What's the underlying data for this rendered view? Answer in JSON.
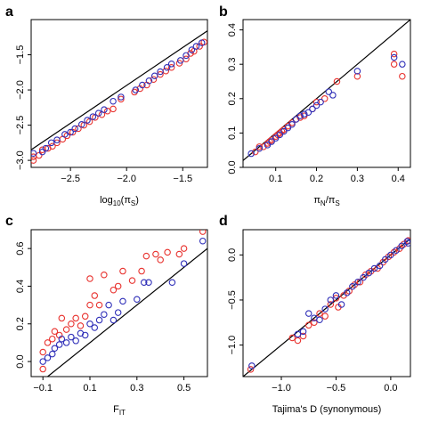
{
  "colors": {
    "red": "#e8322e",
    "blue": "#2f2fb8"
  },
  "chart_data": [
    {
      "panel": "a",
      "type": "scatter",
      "xlabel_main": "log",
      "xlabel_sub": "10",
      "xlabel_rest": "(π",
      "xlabel_rest_sub": "S",
      "xlabel_close": ")",
      "xlim": [
        -2.85,
        -1.28
      ],
      "ylim": [
        -3.1,
        -1.0
      ],
      "xticks": [
        -2.5,
        -2.0,
        -1.5
      ],
      "xtick_labels": [
        "−2.5",
        "−2.0",
        "−1.5"
      ],
      "yticks": [
        -3.0,
        -2.5,
        -2.0,
        -1.5
      ],
      "ytick_labels": [
        "−3.0",
        "−2.5",
        "−2.0",
        "−1.5"
      ],
      "reference_line": {
        "from": [
          -2.85,
          -2.85
        ],
        "to": [
          -1.28,
          -1.16
        ]
      },
      "blue": [
        [
          -2.83,
          -2.9
        ],
        [
          -2.75,
          -2.88
        ],
        [
          -2.72,
          -2.83
        ],
        [
          -2.67,
          -2.75
        ],
        [
          -2.62,
          -2.71
        ],
        [
          -2.55,
          -2.63
        ],
        [
          -2.5,
          -2.6
        ],
        [
          -2.46,
          -2.55
        ],
        [
          -2.4,
          -2.49
        ],
        [
          -2.35,
          -2.43
        ],
        [
          -2.3,
          -2.38
        ],
        [
          -2.25,
          -2.33
        ],
        [
          -2.2,
          -2.28
        ],
        [
          -2.12,
          -2.16
        ],
        [
          -2.05,
          -2.1
        ],
        [
          -1.92,
          -2.0
        ],
        [
          -1.86,
          -1.93
        ],
        [
          -1.8,
          -1.87
        ],
        [
          -1.75,
          -1.8
        ],
        [
          -1.7,
          -1.74
        ],
        [
          -1.64,
          -1.68
        ],
        [
          -1.6,
          -1.63
        ],
        [
          -1.52,
          -1.58
        ],
        [
          -1.47,
          -1.51
        ],
        [
          -1.42,
          -1.43
        ],
        [
          -1.38,
          -1.38
        ],
        [
          -1.33,
          -1.33
        ]
      ],
      "red": [
        [
          -2.83,
          -3.0
        ],
        [
          -2.83,
          -2.95
        ],
        [
          -2.78,
          -2.93
        ],
        [
          -2.75,
          -2.85
        ],
        [
          -2.7,
          -2.83
        ],
        [
          -2.66,
          -2.8
        ],
        [
          -2.62,
          -2.75
        ],
        [
          -2.57,
          -2.7
        ],
        [
          -2.53,
          -2.65
        ],
        [
          -2.48,
          -2.6
        ],
        [
          -2.43,
          -2.55
        ],
        [
          -2.38,
          -2.5
        ],
        [
          -2.33,
          -2.45
        ],
        [
          -2.28,
          -2.39
        ],
        [
          -2.22,
          -2.35
        ],
        [
          -2.17,
          -2.3
        ],
        [
          -2.12,
          -2.27
        ],
        [
          -2.05,
          -2.13
        ],
        [
          -1.93,
          -2.03
        ],
        [
          -1.88,
          -1.98
        ],
        [
          -1.82,
          -1.93
        ],
        [
          -1.76,
          -1.85
        ],
        [
          -1.7,
          -1.78
        ],
        [
          -1.65,
          -1.73
        ],
        [
          -1.6,
          -1.68
        ],
        [
          -1.53,
          -1.62
        ],
        [
          -1.47,
          -1.56
        ],
        [
          -1.43,
          -1.48
        ],
        [
          -1.4,
          -1.45
        ],
        [
          -1.35,
          -1.38
        ],
        [
          -1.31,
          -1.32
        ]
      ]
    },
    {
      "panel": "b",
      "type": "scatter",
      "xlabel_main": "π",
      "xlabel_sub": "N",
      "xlabel_rest": "/π",
      "xlabel_rest_sub": "S",
      "xlabel_close": "",
      "xlim": [
        0.02,
        0.43
      ],
      "ylim": [
        0.0,
        0.43
      ],
      "xticks": [
        0.1,
        0.2,
        0.3,
        0.4
      ],
      "xtick_labels": [
        "0.1",
        "0.2",
        "0.3",
        "0.4"
      ],
      "yticks": [
        0.0,
        0.1,
        0.2,
        0.3,
        0.4
      ],
      "ytick_labels": [
        "0.0",
        "0.1",
        "0.2",
        "0.3",
        "0.4"
      ],
      "reference_line": {
        "from": [
          0.02,
          0.02
        ],
        "to": [
          0.43,
          0.43
        ]
      },
      "blue": [
        [
          0.04,
          0.04
        ],
        [
          0.06,
          0.055
        ],
        [
          0.08,
          0.065
        ],
        [
          0.09,
          0.075
        ],
        [
          0.1,
          0.085
        ],
        [
          0.11,
          0.095
        ],
        [
          0.12,
          0.105
        ],
        [
          0.13,
          0.115
        ],
        [
          0.14,
          0.125
        ],
        [
          0.15,
          0.14
        ],
        [
          0.16,
          0.15
        ],
        [
          0.17,
          0.155
        ],
        [
          0.18,
          0.16
        ],
        [
          0.19,
          0.17
        ],
        [
          0.2,
          0.18
        ],
        [
          0.21,
          0.19
        ],
        [
          0.23,
          0.22
        ],
        [
          0.24,
          0.21
        ],
        [
          0.3,
          0.28
        ],
        [
          0.39,
          0.32
        ],
        [
          0.41,
          0.3
        ]
      ],
      "red": [
        [
          0.05,
          0.045
        ],
        [
          0.06,
          0.06
        ],
        [
          0.07,
          0.06
        ],
        [
          0.08,
          0.07
        ],
        [
          0.085,
          0.075
        ],
        [
          0.09,
          0.08
        ],
        [
          0.1,
          0.09
        ],
        [
          0.105,
          0.095
        ],
        [
          0.11,
          0.1
        ],
        [
          0.115,
          0.105
        ],
        [
          0.12,
          0.11
        ],
        [
          0.13,
          0.12
        ],
        [
          0.14,
          0.13
        ],
        [
          0.15,
          0.14
        ],
        [
          0.16,
          0.145
        ],
        [
          0.17,
          0.15
        ],
        [
          0.19,
          0.17
        ],
        [
          0.2,
          0.19
        ],
        [
          0.22,
          0.2
        ],
        [
          0.25,
          0.25
        ],
        [
          0.3,
          0.265
        ],
        [
          0.39,
          0.33
        ],
        [
          0.39,
          0.3
        ],
        [
          0.41,
          0.265
        ]
      ]
    },
    {
      "panel": "c",
      "type": "scatter",
      "xlabel_main": "F",
      "xlabel_sub": "IT",
      "xlabel_rest": "",
      "xlabel_rest_sub": "",
      "xlabel_close": "",
      "xlim": [
        -0.15,
        0.6
      ],
      "ylim": [
        -0.08,
        0.7
      ],
      "xticks": [
        -0.1,
        0.1,
        0.3,
        0.5
      ],
      "xtick_labels": [
        "−0.1",
        "0.1",
        "0.3",
        "0.5"
      ],
      "yticks": [
        0.0,
        0.2,
        0.4,
        0.6
      ],
      "ytick_labels": [
        "0.0",
        "0.2",
        "0.4",
        "0.6"
      ],
      "reference_line": {
        "from": [
          -0.15,
          -0.15
        ],
        "to": [
          0.6,
          0.6
        ]
      },
      "blue": [
        [
          -0.1,
          0.0
        ],
        [
          -0.08,
          0.02
        ],
        [
          -0.06,
          0.04
        ],
        [
          -0.05,
          0.07
        ],
        [
          -0.03,
          0.09
        ],
        [
          -0.02,
          0.12
        ],
        [
          0.0,
          0.1
        ],
        [
          0.02,
          0.13
        ],
        [
          0.04,
          0.11
        ],
        [
          0.06,
          0.15
        ],
        [
          0.08,
          0.14
        ],
        [
          0.1,
          0.2
        ],
        [
          0.12,
          0.18
        ],
        [
          0.14,
          0.22
        ],
        [
          0.16,
          0.25
        ],
        [
          0.18,
          0.3
        ],
        [
          0.2,
          0.22
        ],
        [
          0.22,
          0.26
        ],
        [
          0.24,
          0.32
        ],
        [
          0.3,
          0.33
        ],
        [
          0.33,
          0.42
        ],
        [
          0.35,
          0.42
        ],
        [
          0.45,
          0.42
        ],
        [
          0.5,
          0.52
        ],
        [
          0.58,
          0.64
        ]
      ],
      "red": [
        [
          -0.1,
          -0.04
        ],
        [
          -0.1,
          0.05
        ],
        [
          -0.08,
          0.1
        ],
        [
          -0.06,
          0.12
        ],
        [
          -0.05,
          0.16
        ],
        [
          -0.03,
          0.14
        ],
        [
          -0.02,
          0.23
        ],
        [
          0.0,
          0.17
        ],
        [
          0.02,
          0.2
        ],
        [
          0.04,
          0.23
        ],
        [
          0.06,
          0.19
        ],
        [
          0.08,
          0.24
        ],
        [
          0.1,
          0.3
        ],
        [
          0.1,
          0.44
        ],
        [
          0.12,
          0.35
        ],
        [
          0.14,
          0.3
        ],
        [
          0.16,
          0.46
        ],
        [
          0.2,
          0.38
        ],
        [
          0.22,
          0.4
        ],
        [
          0.24,
          0.48
        ],
        [
          0.28,
          0.43
        ],
        [
          0.32,
          0.48
        ],
        [
          0.34,
          0.56
        ],
        [
          0.38,
          0.57
        ],
        [
          0.4,
          0.54
        ],
        [
          0.43,
          0.58
        ],
        [
          0.48,
          0.57
        ],
        [
          0.5,
          0.6
        ],
        [
          0.58,
          0.69
        ]
      ]
    },
    {
      "panel": "d",
      "type": "scatter",
      "xlabel_main": "Tajima's D (synonymous)",
      "xlabel_sub": "",
      "xlabel_rest": "",
      "xlabel_rest_sub": "",
      "xlabel_close": "",
      "xlim": [
        -1.35,
        0.18
      ],
      "ylim": [
        -1.35,
        0.28
      ],
      "xticks": [
        -1.0,
        -0.5,
        0.0
      ],
      "xtick_labels": [
        "−1.0",
        "−0.5",
        "0.0"
      ],
      "yticks": [
        -1.0,
        -0.5,
        0.0
      ],
      "ytick_labels": [
        "−1.0",
        "−0.5",
        "0.0"
      ],
      "reference_line": {
        "from": [
          -1.35,
          -1.35
        ],
        "to": [
          0.18,
          0.18
        ]
      },
      "blue": [
        [
          -1.27,
          -1.23
        ],
        [
          -0.85,
          -0.88
        ],
        [
          -0.8,
          -0.85
        ],
        [
          -0.75,
          -0.65
        ],
        [
          -0.7,
          -0.7
        ],
        [
          -0.65,
          -0.72
        ],
        [
          -0.6,
          -0.6
        ],
        [
          -0.55,
          -0.5
        ],
        [
          -0.5,
          -0.45
        ],
        [
          -0.45,
          -0.55
        ],
        [
          -0.4,
          -0.42
        ],
        [
          -0.35,
          -0.35
        ],
        [
          -0.3,
          -0.3
        ],
        [
          -0.25,
          -0.25
        ],
        [
          -0.2,
          -0.2
        ],
        [
          -0.15,
          -0.15
        ],
        [
          -0.1,
          -0.12
        ],
        [
          -0.05,
          -0.05
        ],
        [
          0.0,
          0.0
        ],
        [
          0.05,
          0.05
        ],
        [
          0.1,
          0.1
        ],
        [
          0.15,
          0.15
        ],
        [
          0.16,
          0.13
        ]
      ],
      "red": [
        [
          -1.28,
          -1.27
        ],
        [
          -0.9,
          -0.92
        ],
        [
          -0.85,
          -0.95
        ],
        [
          -0.8,
          -0.9
        ],
        [
          -0.75,
          -0.78
        ],
        [
          -0.7,
          -0.75
        ],
        [
          -0.65,
          -0.65
        ],
        [
          -0.6,
          -0.68
        ],
        [
          -0.55,
          -0.55
        ],
        [
          -0.5,
          -0.48
        ],
        [
          -0.48,
          -0.58
        ],
        [
          -0.43,
          -0.45
        ],
        [
          -0.38,
          -0.4
        ],
        [
          -0.33,
          -0.33
        ],
        [
          -0.28,
          -0.3
        ],
        [
          -0.23,
          -0.22
        ],
        [
          -0.18,
          -0.18
        ],
        [
          -0.12,
          -0.15
        ],
        [
          -0.07,
          -0.08
        ],
        [
          -0.02,
          -0.02
        ],
        [
          0.03,
          0.03
        ],
        [
          0.08,
          0.07
        ],
        [
          0.12,
          0.12
        ],
        [
          0.16,
          0.16
        ]
      ]
    }
  ]
}
